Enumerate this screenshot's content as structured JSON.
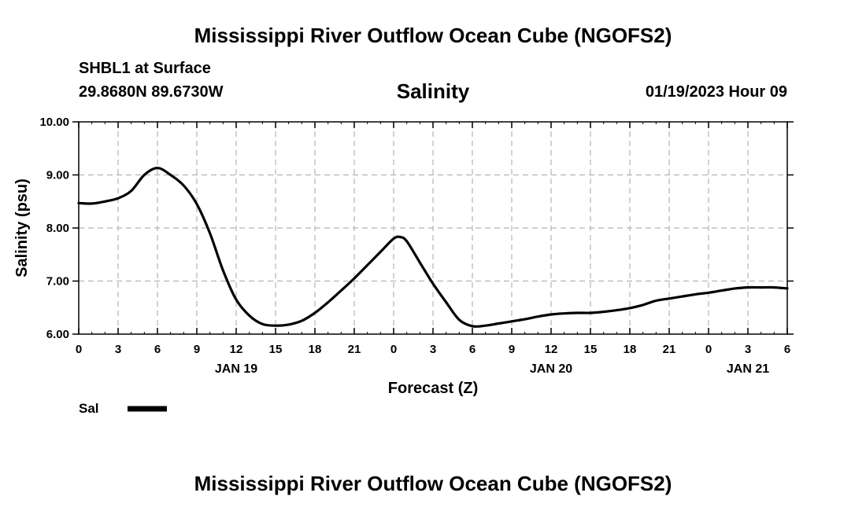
{
  "page": {
    "title_top": "Mississippi River Outflow Ocean Cube (NGOFS2)",
    "title_bottom": "Mississippi River Outflow Ocean Cube (NGOFS2)",
    "station": "SHBL1 at Surface",
    "coords": "29.8680N  89.6730W",
    "datetime": "01/19/2023 Hour 09"
  },
  "legend": {
    "label": "Sal",
    "color": "#000000"
  },
  "chart_data": {
    "type": "line",
    "title": "Salinity",
    "xlabel": "Forecast (Z)",
    "ylabel": "Salinity (psu)",
    "xlim": [
      0,
      54
    ],
    "ylim": [
      6.0,
      10.0
    ],
    "grid": true,
    "y_ticks": [
      6.0,
      7.0,
      8.0,
      9.0,
      10.0
    ],
    "y_tick_labels": [
      "6.00",
      "7.00",
      "8.00",
      "9.00",
      "10.00"
    ],
    "x_ticks": [
      0,
      3,
      6,
      9,
      12,
      15,
      18,
      21,
      24,
      27,
      30,
      33,
      36,
      39,
      42,
      45,
      48,
      51,
      54
    ],
    "x_tick_labels": [
      "0",
      "3",
      "6",
      "9",
      "12",
      "15",
      "18",
      "21",
      "0",
      "3",
      "6",
      "9",
      "12",
      "15",
      "18",
      "21",
      "0",
      "3",
      "6"
    ],
    "day_labels": [
      {
        "label": "JAN 19",
        "x": 12
      },
      {
        "label": "JAN 20",
        "x": 36
      },
      {
        "label": "JAN 21",
        "x": 51
      }
    ],
    "series": [
      {
        "name": "Sal",
        "color": "#000000",
        "x": [
          0,
          1,
          2,
          3,
          4,
          5,
          6,
          7,
          8,
          9,
          10,
          11,
          12,
          13,
          14,
          15,
          16,
          17,
          18,
          19,
          20,
          21,
          22,
          23,
          24,
          24.5,
          25,
          26,
          27,
          28,
          29,
          30,
          31,
          32,
          33,
          34,
          35,
          36,
          37,
          38,
          39,
          40,
          41,
          42,
          43,
          44,
          45,
          46,
          47,
          48,
          49,
          50,
          51,
          52,
          53,
          54
        ],
        "values": [
          8.47,
          8.46,
          8.5,
          8.56,
          8.7,
          9.0,
          9.13,
          9.0,
          8.8,
          8.45,
          7.9,
          7.2,
          6.65,
          6.35,
          6.19,
          6.16,
          6.18,
          6.25,
          6.4,
          6.6,
          6.82,
          7.05,
          7.3,
          7.55,
          7.8,
          7.83,
          7.75,
          7.35,
          6.95,
          6.6,
          6.27,
          6.15,
          6.16,
          6.2,
          6.24,
          6.28,
          6.33,
          6.37,
          6.39,
          6.4,
          6.4,
          6.42,
          6.45,
          6.49,
          6.55,
          6.63,
          6.67,
          6.71,
          6.75,
          6.78,
          6.82,
          6.86,
          6.88,
          6.88,
          6.88,
          6.86
        ]
      }
    ]
  }
}
